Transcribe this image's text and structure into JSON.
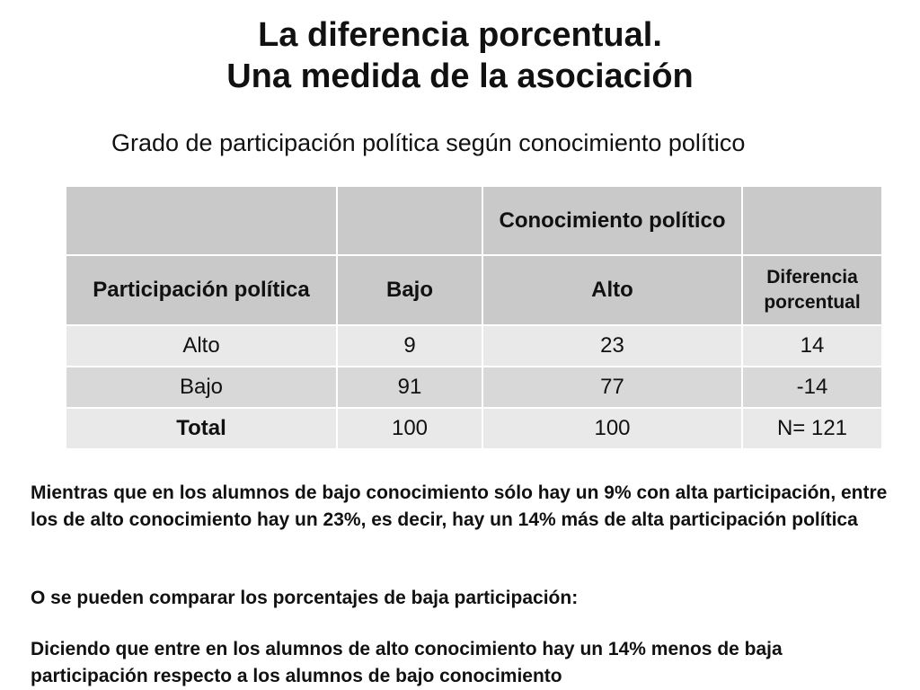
{
  "title": {
    "line1": "La diferencia porcentual.",
    "line2": "Una medida de la asociación"
  },
  "subtitle": "Grado de participación política según conocimiento político",
  "table": {
    "group_header": "Conocimiento político",
    "columns": {
      "row_label": "Participación política",
      "bajo": "Bajo",
      "alto": "Alto",
      "diff": "Diferencia porcentual"
    },
    "rows": [
      {
        "label": "Alto",
        "bajo": "9",
        "alto": "23",
        "diff": "14"
      },
      {
        "label": "Bajo",
        "bajo": "91",
        "alto": "77",
        "diff": "-14"
      },
      {
        "label": "Total",
        "bajo": "100",
        "alto": "100",
        "diff": "N= 121"
      }
    ]
  },
  "paragraphs": [
    "Mientras que en los alumnos de bajo conocimiento sólo hay un 9% con alta participación, entre los de alto conocimiento hay un 23%, es decir, hay un 14% más de alta participación política",
    "O se pueden comparar los porcentajes de baja participación:",
    "Diciendo que entre en los alumnos de alto conocimiento hay un 14% menos de baja participación respecto a los alumnos de bajo conocimiento"
  ]
}
